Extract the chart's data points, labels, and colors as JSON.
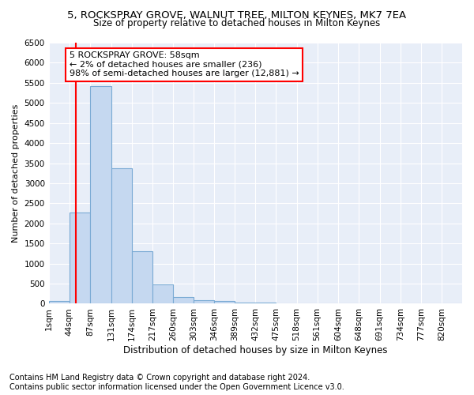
{
  "title": "5, ROCKSPRAY GROVE, WALNUT TREE, MILTON KEYNES, MK7 7EA",
  "subtitle": "Size of property relative to detached houses in Milton Keynes",
  "xlabel": "Distribution of detached houses by size in Milton Keynes",
  "ylabel": "Number of detached properties",
  "bar_edges": [
    1,
    44,
    87,
    131,
    174,
    217,
    260,
    303,
    346,
    389,
    432,
    475,
    518,
    561,
    604,
    648,
    691,
    734,
    777,
    820,
    863
  ],
  "bar_heights": [
    70,
    2280,
    5420,
    3380,
    1310,
    480,
    165,
    95,
    65,
    35,
    20,
    15,
    10,
    8,
    5,
    4,
    3,
    2,
    2,
    1
  ],
  "bar_color": "#c5d8f0",
  "bar_edge_color": "#7aaad4",
  "property_size": 58,
  "annotation_text": "5 ROCKSPRAY GROVE: 58sqm\n← 2% of detached houses are smaller (236)\n98% of semi-detached houses are larger (12,881) →",
  "annotation_box_color": "white",
  "annotation_box_edge_color": "red",
  "vline_color": "red",
  "ylim": [
    0,
    6500
  ],
  "yticks": [
    0,
    500,
    1000,
    1500,
    2000,
    2500,
    3000,
    3500,
    4000,
    4500,
    5000,
    5500,
    6000,
    6500
  ],
  "bg_color": "#e8eef8",
  "footer": "Contains HM Land Registry data © Crown copyright and database right 2024.\nContains public sector information licensed under the Open Government Licence v3.0.",
  "footer_fontsize": 7.0,
  "title_fontsize": 9.5,
  "subtitle_fontsize": 8.5,
  "xlabel_fontsize": 8.5,
  "ylabel_fontsize": 8.0,
  "tick_fontsize": 7.5,
  "annot_fontsize": 8.0
}
